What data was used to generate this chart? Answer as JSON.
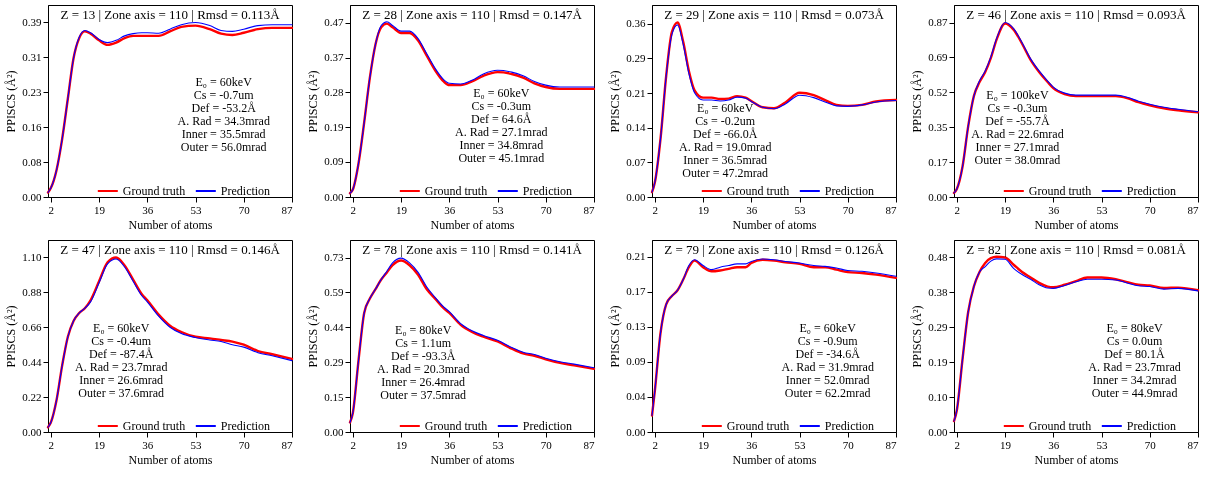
{
  "chart_data": [
    {
      "type": "line",
      "title": "Z = 13 | Zone axis = 110 | Rmsd = 0.113Å",
      "xlabel": "Number of atoms",
      "ylabel": "PPISCS (Å²)",
      "legend": "bottom",
      "x": [
        1,
        2,
        4,
        6,
        8,
        10,
        12,
        14,
        16,
        19,
        22,
        25,
        28,
        31,
        34,
        36,
        40,
        44,
        48,
        53,
        58,
        62,
        66,
        70,
        75,
        80,
        87
      ],
      "xlim": [
        1,
        87
      ],
      "xticks": [
        2,
        19,
        36,
        53,
        70,
        87
      ],
      "ylim": [
        0,
        0.429
      ],
      "yticks": [
        {
          "value": 0,
          "label": "0.00"
        },
        {
          "value": 0.078,
          "label": "0.08"
        },
        {
          "value": 0.156,
          "label": "0.16"
        },
        {
          "value": 0.234,
          "label": "0.23"
        },
        {
          "value": 0.312,
          "label": "0.31"
        },
        {
          "value": 0.39,
          "label": "0.39"
        }
      ],
      "series": [
        {
          "name": "Ground truth",
          "color": "#ff0000",
          "values": [
            0.01,
            0.02,
            0.06,
            0.13,
            0.22,
            0.31,
            0.355,
            0.37,
            0.365,
            0.35,
            0.34,
            0.345,
            0.355,
            0.36,
            0.36,
            0.36,
            0.36,
            0.37,
            0.38,
            0.383,
            0.375,
            0.365,
            0.362,
            0.367,
            0.375,
            0.378,
            0.378
          ]
        },
        {
          "name": "Prediction",
          "color": "#0000ff",
          "values": [
            0.01,
            0.02,
            0.06,
            0.13,
            0.22,
            0.31,
            0.357,
            0.372,
            0.367,
            0.352,
            0.345,
            0.35,
            0.36,
            0.365,
            0.367,
            0.367,
            0.366,
            0.375,
            0.385,
            0.39,
            0.383,
            0.372,
            0.37,
            0.375,
            0.383,
            0.385,
            0.385
          ]
        }
      ],
      "annotations": [
        "E₀ = 60keV",
        "Cs = -0.7um",
        "Def = -53.2Å",
        "A. Rad = 34.3mrad",
        "Inner = 35.5mrad",
        "Outer = 56.0mrad"
      ]
    },
    {
      "type": "line",
      "title": "Z = 28 | Zone axis = 110 | Rmsd = 0.147Å",
      "xlabel": "Number of atoms",
      "ylabel": "PPISCS (Å²)",
      "legend": "bottom",
      "x": [
        1,
        2,
        4,
        6,
        8,
        10,
        12,
        14,
        16,
        19,
        22,
        25,
        28,
        31,
        34,
        36,
        40,
        44,
        48,
        53,
        58,
        62,
        66,
        70,
        75,
        80,
        87
      ],
      "xlim": [
        1,
        87
      ],
      "xticks": [
        2,
        19,
        36,
        53,
        70,
        87
      ],
      "ylim": [
        0,
        0.515
      ],
      "yticks": [
        {
          "value": 0,
          "label": "0.00"
        },
        {
          "value": 0.094,
          "label": "0.09"
        },
        {
          "value": 0.187,
          "label": "0.19"
        },
        {
          "value": 0.281,
          "label": "0.28"
        },
        {
          "value": 0.374,
          "label": "0.37"
        },
        {
          "value": 0.468,
          "label": "0.47"
        }
      ],
      "series": [
        {
          "name": "Ground truth",
          "color": "#ff0000",
          "values": [
            0.01,
            0.02,
            0.09,
            0.2,
            0.32,
            0.41,
            0.455,
            0.465,
            0.455,
            0.44,
            0.44,
            0.42,
            0.38,
            0.34,
            0.31,
            0.3,
            0.3,
            0.31,
            0.325,
            0.335,
            0.33,
            0.32,
            0.305,
            0.295,
            0.29,
            0.29,
            0.29
          ]
        },
        {
          "name": "Prediction",
          "color": "#0000ff",
          "values": [
            0.01,
            0.02,
            0.09,
            0.2,
            0.32,
            0.41,
            0.46,
            0.47,
            0.46,
            0.445,
            0.445,
            0.425,
            0.385,
            0.345,
            0.315,
            0.305,
            0.303,
            0.313,
            0.33,
            0.34,
            0.335,
            0.325,
            0.31,
            0.3,
            0.295,
            0.295,
            0.295
          ]
        }
      ],
      "annotations": [
        "E₀ = 60keV",
        "Cs = -0.3um",
        "Def = 64.6Å",
        "A. Rad = 27.1mrad",
        "Inner = 34.8mrad",
        "Outer = 45.1mrad"
      ]
    },
    {
      "type": "line",
      "title": "Z = 29 | Zone axis = 110 | Rmsd = 0.073Å",
      "xlabel": "Number of atoms",
      "ylabel": "PPISCS (Å²)",
      "legend": "bottom",
      "x": [
        1,
        2,
        4,
        6,
        8,
        10,
        12,
        14,
        16,
        19,
        22,
        25,
        28,
        31,
        34,
        36,
        40,
        44,
        48,
        53,
        58,
        62,
        66,
        70,
        75,
        80,
        87
      ],
      "xlim": [
        1,
        87
      ],
      "xticks": [
        2,
        19,
        36,
        53,
        70,
        87
      ],
      "ylim": [
        0,
        0.396
      ],
      "yticks": [
        {
          "value": 0,
          "label": "0.00"
        },
        {
          "value": 0.0715,
          "label": "0.07"
        },
        {
          "value": 0.143,
          "label": "0.14"
        },
        {
          "value": 0.2145,
          "label": "0.21"
        },
        {
          "value": 0.286,
          "label": "0.29"
        },
        {
          "value": 0.3575,
          "label": "0.36"
        }
      ],
      "series": [
        {
          "name": "Ground truth",
          "color": "#ff0000",
          "values": [
            0.01,
            0.03,
            0.12,
            0.25,
            0.34,
            0.36,
            0.32,
            0.26,
            0.22,
            0.205,
            0.205,
            0.202,
            0.203,
            0.208,
            0.205,
            0.198,
            0.185,
            0.183,
            0.195,
            0.215,
            0.21,
            0.2,
            0.19,
            0.188,
            0.19,
            0.197,
            0.2
          ]
        },
        {
          "name": "Prediction",
          "color": "#0000ff",
          "values": [
            0.01,
            0.03,
            0.12,
            0.25,
            0.335,
            0.355,
            0.315,
            0.255,
            0.215,
            0.2,
            0.2,
            0.198,
            0.2,
            0.206,
            0.204,
            0.197,
            0.185,
            0.182,
            0.192,
            0.21,
            0.205,
            0.196,
            0.188,
            0.187,
            0.19,
            0.196,
            0.199
          ]
        }
      ],
      "annotations": [
        "E₀ = 60keV",
        "Cs = -0.2um",
        "Def = -66.0Å",
        "A. Rad = 19.0mrad",
        "Inner = 36.5mrad",
        "Outer = 47.2mrad"
      ]
    },
    {
      "type": "line",
      "title": "Z = 46 | Zone axis = 110 | Rmsd = 0.093Å",
      "xlabel": "Number of atoms",
      "ylabel": "PPISCS (Å²)",
      "legend": "bottom",
      "x": [
        1,
        2,
        4,
        6,
        8,
        10,
        12,
        14,
        16,
        19,
        22,
        25,
        28,
        31,
        34,
        36,
        40,
        44,
        48,
        53,
        58,
        62,
        66,
        70,
        75,
        80,
        87
      ],
      "xlim": [
        1,
        87
      ],
      "xticks": [
        2,
        19,
        36,
        53,
        70,
        87
      ],
      "ylim": [
        0,
        0.952
      ],
      "yticks": [
        {
          "value": 0,
          "label": "0.00"
        },
        {
          "value": 0.173,
          "label": "0.17"
        },
        {
          "value": 0.346,
          "label": "0.35"
        },
        {
          "value": 0.519,
          "label": "0.52"
        },
        {
          "value": 0.692,
          "label": "0.69"
        },
        {
          "value": 0.865,
          "label": "0.87"
        }
      ],
      "series": [
        {
          "name": "Ground truth",
          "color": "#ff0000",
          "values": [
            0.02,
            0.04,
            0.15,
            0.35,
            0.5,
            0.57,
            0.62,
            0.69,
            0.78,
            0.86,
            0.83,
            0.76,
            0.68,
            0.62,
            0.57,
            0.54,
            0.51,
            0.5,
            0.5,
            0.5,
            0.5,
            0.49,
            0.47,
            0.455,
            0.44,
            0.43,
            0.42
          ]
        },
        {
          "name": "Prediction",
          "color": "#0000ff",
          "values": [
            0.02,
            0.04,
            0.15,
            0.35,
            0.5,
            0.575,
            0.625,
            0.695,
            0.785,
            0.865,
            0.835,
            0.765,
            0.685,
            0.625,
            0.575,
            0.545,
            0.515,
            0.505,
            0.505,
            0.505,
            0.505,
            0.495,
            0.475,
            0.46,
            0.445,
            0.435,
            0.423
          ]
        }
      ],
      "annotations": [
        "E₀ = 100keV",
        "Cs = -0.3um",
        "Def = -55.7Å",
        "A. Rad = 22.6mrad",
        "Inner = 27.1mrad",
        "Outer = 38.0mrad"
      ]
    },
    {
      "type": "line",
      "title": "Z = 47 | Zone axis = 110 | Rmsd = 0.146Å",
      "xlabel": "Number of atoms",
      "ylabel": "PPISCS (Å²)",
      "legend": "bottom",
      "x": [
        1,
        2,
        4,
        6,
        8,
        10,
        12,
        14,
        16,
        19,
        22,
        25,
        28,
        31,
        34,
        36,
        40,
        44,
        48,
        53,
        58,
        62,
        66,
        70,
        75,
        80,
        87
      ],
      "xlim": [
        1,
        87
      ],
      "xticks": [
        2,
        19,
        36,
        53,
        70,
        87
      ],
      "ylim": [
        0,
        1.21
      ],
      "yticks": [
        {
          "value": 0,
          "label": "0.00"
        },
        {
          "value": 0.22,
          "label": "0.22"
        },
        {
          "value": 0.44,
          "label": "0.44"
        },
        {
          "value": 0.66,
          "label": "0.66"
        },
        {
          "value": 0.88,
          "label": "0.88"
        },
        {
          "value": 1.1,
          "label": "1.10"
        }
      ],
      "series": [
        {
          "name": "Ground truth",
          "color": "#ff0000",
          "values": [
            0.03,
            0.06,
            0.2,
            0.42,
            0.6,
            0.7,
            0.75,
            0.78,
            0.83,
            0.95,
            1.07,
            1.1,
            1.05,
            0.96,
            0.87,
            0.83,
            0.74,
            0.67,
            0.63,
            0.6,
            0.59,
            0.58,
            0.57,
            0.55,
            0.51,
            0.49,
            0.46
          ]
        },
        {
          "name": "Prediction",
          "color": "#0000ff",
          "values": [
            0.03,
            0.06,
            0.2,
            0.42,
            0.6,
            0.7,
            0.75,
            0.78,
            0.82,
            0.94,
            1.06,
            1.09,
            1.04,
            0.95,
            0.86,
            0.82,
            0.73,
            0.66,
            0.62,
            0.595,
            0.58,
            0.57,
            0.55,
            0.535,
            0.5,
            0.48,
            0.45
          ]
        }
      ],
      "annotations": [
        "E₀ = 60keV",
        "Cs = -0.4um",
        "Def = -87.4Å",
        "A. Rad = 23.7mrad",
        "Inner = 26.6mrad",
        "Outer = 37.6mrad"
      ]
    },
    {
      "type": "line",
      "title": "Z = 78 | Zone axis = 110 | Rmsd = 0.141Å",
      "xlabel": "Number of atoms",
      "ylabel": "PPISCS (Å²)",
      "legend": "bottom",
      "x": [
        1,
        2,
        4,
        6,
        8,
        10,
        12,
        14,
        16,
        19,
        22,
        25,
        28,
        31,
        34,
        36,
        40,
        44,
        48,
        53,
        58,
        62,
        66,
        70,
        75,
        80,
        87
      ],
      "xlim": [
        1,
        87
      ],
      "xticks": [
        2,
        19,
        36,
        53,
        70,
        87
      ],
      "ylim": [
        0,
        0.806
      ],
      "yticks": [
        {
          "value": 0,
          "label": "0.00"
        },
        {
          "value": 0.1465,
          "label": "0.15"
        },
        {
          "value": 0.293,
          "label": "0.29"
        },
        {
          "value": 0.4395,
          "label": "0.44"
        },
        {
          "value": 0.586,
          "label": "0.59"
        },
        {
          "value": 0.7325,
          "label": "0.73"
        }
      ],
      "series": [
        {
          "name": "Ground truth",
          "color": "#ff0000",
          "values": [
            0.04,
            0.08,
            0.3,
            0.5,
            0.56,
            0.6,
            0.64,
            0.67,
            0.7,
            0.72,
            0.7,
            0.66,
            0.6,
            0.56,
            0.52,
            0.5,
            0.45,
            0.42,
            0.4,
            0.38,
            0.35,
            0.33,
            0.32,
            0.305,
            0.29,
            0.28,
            0.265
          ]
        },
        {
          "name": "Prediction",
          "color": "#0000ff",
          "values": [
            0.04,
            0.08,
            0.3,
            0.5,
            0.56,
            0.6,
            0.64,
            0.675,
            0.71,
            0.73,
            0.71,
            0.67,
            0.61,
            0.565,
            0.525,
            0.505,
            0.455,
            0.425,
            0.405,
            0.385,
            0.355,
            0.335,
            0.325,
            0.31,
            0.295,
            0.285,
            0.27
          ]
        }
      ],
      "annotations": [
        "E₀ = 80keV",
        "Cs = 1.1um",
        "Def = -93.3Å",
        "A. Rad = 20.3mrad",
        "Inner = 26.4mrad",
        "Outer = 37.5mrad"
      ]
    },
    {
      "type": "line",
      "title": "Z = 79 | Zone axis = 110 | Rmsd = 0.126Å",
      "xlabel": "Number of atoms",
      "ylabel": "PPISCS (Å²)",
      "legend": "bottom",
      "x": [
        1,
        2,
        4,
        6,
        8,
        10,
        12,
        14,
        16,
        19,
        22,
        25,
        28,
        31,
        34,
        36,
        40,
        44,
        48,
        53,
        58,
        62,
        66,
        70,
        75,
        80,
        87
      ],
      "xlim": [
        1,
        87
      ],
      "xticks": [
        2,
        19,
        36,
        53,
        70,
        87
      ],
      "ylim": [
        0,
        0.233
      ],
      "yticks": [
        {
          "value": 0,
          "label": "0.00"
        },
        {
          "value": 0.0425,
          "label": "0.04"
        },
        {
          "value": 0.085,
          "label": "0.09"
        },
        {
          "value": 0.1275,
          "label": "0.13"
        },
        {
          "value": 0.17,
          "label": "0.17"
        },
        {
          "value": 0.2125,
          "label": "0.21"
        }
      ],
      "series": [
        {
          "name": "Ground truth",
          "color": "#ff0000",
          "values": [
            0.02,
            0.05,
            0.12,
            0.155,
            0.165,
            0.172,
            0.185,
            0.2,
            0.208,
            0.2,
            0.195,
            0.196,
            0.198,
            0.2,
            0.2,
            0.205,
            0.209,
            0.208,
            0.206,
            0.204,
            0.2,
            0.2,
            0.197,
            0.194,
            0.193,
            0.191,
            0.187
          ]
        },
        {
          "name": "Prediction",
          "color": "#0000ff",
          "values": [
            0.02,
            0.05,
            0.12,
            0.155,
            0.165,
            0.172,
            0.185,
            0.202,
            0.209,
            0.202,
            0.197,
            0.2,
            0.202,
            0.204,
            0.204,
            0.207,
            0.21,
            0.209,
            0.207,
            0.205,
            0.202,
            0.201,
            0.199,
            0.196,
            0.195,
            0.193,
            0.189
          ]
        }
      ],
      "annotations": [
        "E₀ = 60keV",
        "Cs = -0.9um",
        "Def = -34.6Å",
        "A. Rad = 31.9mrad",
        "Inner = 52.0mrad",
        "Outer = 62.2mrad"
      ]
    },
    {
      "type": "line",
      "title": "Z = 82 | Zone axis = 110 | Rmsd = 0.081Å",
      "xlabel": "Number of atoms",
      "ylabel": "PPISCS (Å²)",
      "legend": "bottom",
      "x": [
        1,
        2,
        4,
        6,
        8,
        10,
        12,
        14,
        16,
        19,
        22,
        25,
        28,
        31,
        34,
        36,
        40,
        44,
        48,
        53,
        58,
        62,
        66,
        70,
        75,
        80,
        87
      ],
      "xlim": [
        1,
        87
      ],
      "xticks": [
        2,
        19,
        36,
        53,
        70,
        87
      ],
      "ylim": [
        0,
        0.528
      ],
      "yticks": [
        {
          "value": 0,
          "label": "0.00"
        },
        {
          "value": 0.096,
          "label": "0.10"
        },
        {
          "value": 0.192,
          "label": "0.19"
        },
        {
          "value": 0.288,
          "label": "0.29"
        },
        {
          "value": 0.384,
          "label": "0.38"
        },
        {
          "value": 0.48,
          "label": "0.48"
        }
      ],
      "series": [
        {
          "name": "Ground truth",
          "color": "#ff0000",
          "values": [
            0.03,
            0.06,
            0.2,
            0.33,
            0.4,
            0.44,
            0.465,
            0.478,
            0.482,
            0.48,
            0.46,
            0.44,
            0.425,
            0.41,
            0.4,
            0.398,
            0.405,
            0.415,
            0.425,
            0.425,
            0.42,
            0.412,
            0.405,
            0.403,
            0.396,
            0.397,
            0.39
          ]
        },
        {
          "name": "Prediction",
          "color": "#0000ff",
          "values": [
            0.03,
            0.06,
            0.2,
            0.33,
            0.4,
            0.44,
            0.455,
            0.47,
            0.476,
            0.475,
            0.45,
            0.433,
            0.42,
            0.405,
            0.396,
            0.395,
            0.403,
            0.413,
            0.42,
            0.42,
            0.418,
            0.41,
            0.402,
            0.4,
            0.393,
            0.395,
            0.388
          ]
        }
      ],
      "annotations": [
        "E₀ = 80keV",
        "Cs = 0.0um",
        "Def = 80.1Å",
        "A. Rad = 23.7mrad",
        "Inner = 34.2mrad",
        "Outer = 44.9mrad"
      ]
    }
  ]
}
